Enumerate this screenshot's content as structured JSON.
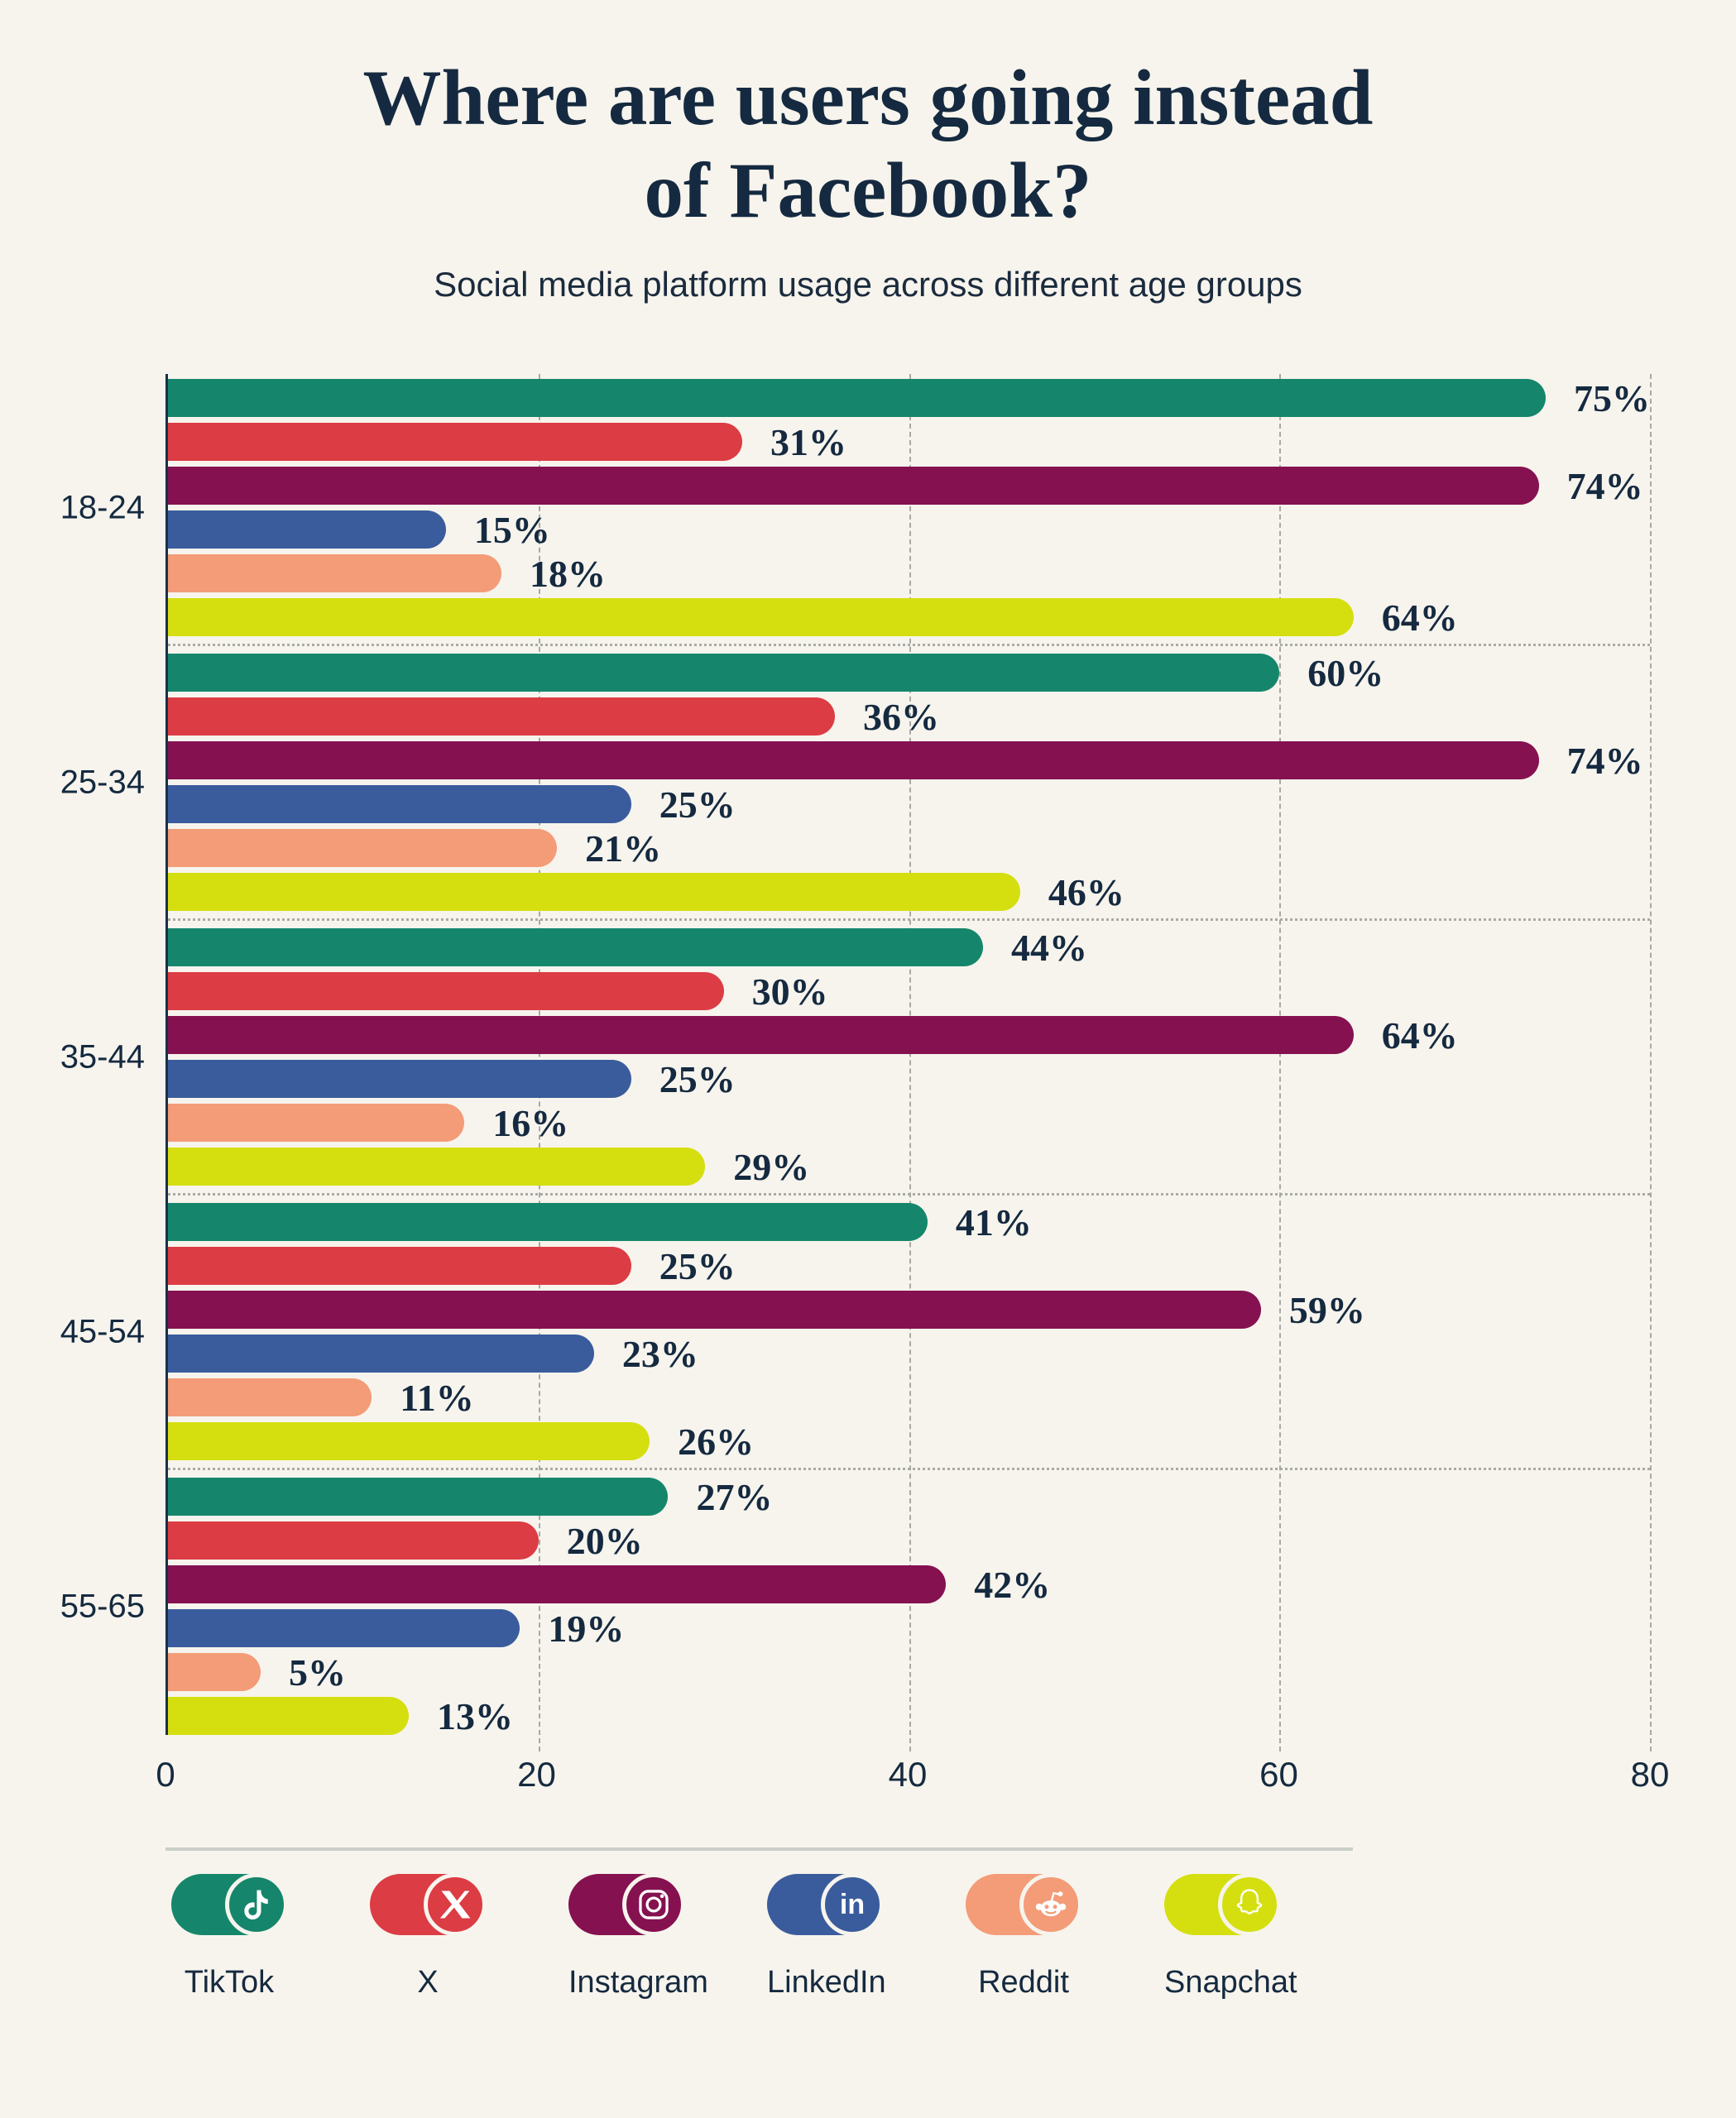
{
  "title": {
    "line1": "Where are users going instead",
    "line2": "of Facebook?"
  },
  "subtitle": "Social media platform usage across different age groups",
  "chart_data": {
    "type": "bar",
    "orientation": "horizontal",
    "title": "Where are users going instead of Facebook?",
    "subtitle": "Social media platform usage across different age groups",
    "categories": [
      "18-24",
      "25-34",
      "35-44",
      "45-54",
      "55-65"
    ],
    "series": [
      {
        "name": "TikTok",
        "color": "#15866B",
        "values": [
          75,
          60,
          44,
          41,
          27
        ]
      },
      {
        "name": "X",
        "color": "#DC3C44",
        "values": [
          31,
          36,
          30,
          25,
          20
        ]
      },
      {
        "name": "Instagram",
        "color": "#851150",
        "values": [
          74,
          74,
          64,
          59,
          42
        ]
      },
      {
        "name": "LinkedIn",
        "color": "#3A5C9C",
        "values": [
          15,
          25,
          25,
          23,
          19
        ]
      },
      {
        "name": "Reddit",
        "color": "#F39C77",
        "values": [
          18,
          21,
          16,
          11,
          5
        ]
      },
      {
        "name": "Snapchat",
        "color": "#D5DF10",
        "values": [
          64,
          46,
          29,
          26,
          13
        ]
      }
    ],
    "value_suffix": "%",
    "xlim": [
      0,
      80
    ],
    "x_ticks": [
      0,
      20,
      40,
      60,
      80
    ],
    "grid": "dashed vertical gridlines at 20/40/60/80, dotted horizontal separators between age groups",
    "legend_position": "bottom"
  },
  "legend": {
    "items": [
      {
        "label": "TikTok",
        "icon": "tiktok-icon"
      },
      {
        "label": "X",
        "icon": "x-icon"
      },
      {
        "label": "Instagram",
        "icon": "instagram-icon"
      },
      {
        "label": "LinkedIn",
        "icon": "linkedin-icon"
      },
      {
        "label": "Reddit",
        "icon": "reddit-icon"
      },
      {
        "label": "Snapchat",
        "icon": "snapchat-icon"
      }
    ]
  },
  "colors": {
    "background": "#F7F4ED",
    "text": "#152A40",
    "axis": "#1B2F47",
    "gridline": "#A7A9A5",
    "separator": "#A9ABA7",
    "legend_divider": "#CBCFC9"
  }
}
